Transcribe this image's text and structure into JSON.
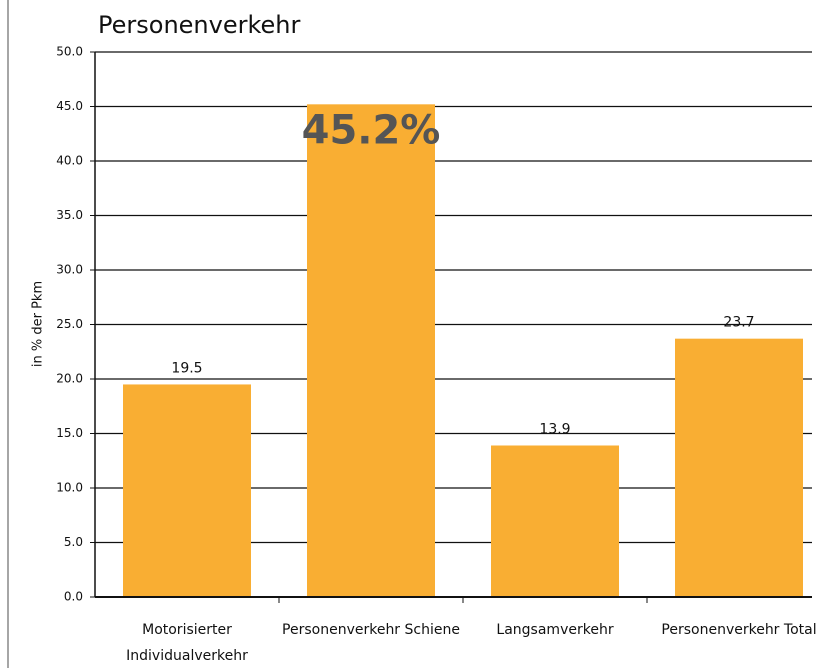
{
  "chart_data": {
    "type": "bar",
    "title": "Personenverkehr",
    "y_label": "in % der Pkm",
    "categories": [
      "Motorisierter Individualverkehr",
      "Personenverkehr Schiene",
      "Langsamverkehr",
      "Personenverkehr Total"
    ],
    "values": [
      19.5,
      45.2,
      13.9,
      23.7
    ],
    "value_labels": [
      "19.5",
      "45.2%",
      "13.9",
      "23.7"
    ],
    "color": "#f9ae33",
    "ylim": [
      0,
      50
    ],
    "yticks": [
      {
        "value": 0,
        "label": "0.0"
      },
      {
        "value": 5,
        "label": "5.0"
      },
      {
        "value": 10,
        "label": "10.0"
      },
      {
        "value": 15,
        "label": "15.0"
      },
      {
        "value": 20,
        "label": "20.0"
      },
      {
        "value": 25,
        "label": "25.0"
      },
      {
        "value": 30,
        "label": "30.0"
      },
      {
        "value": 35,
        "label": "35.0"
      },
      {
        "value": 40,
        "label": "40.0"
      },
      {
        "value": 45,
        "label": "45.0"
      },
      {
        "value": 50,
        "label": "50.0"
      }
    ],
    "grid": true
  }
}
